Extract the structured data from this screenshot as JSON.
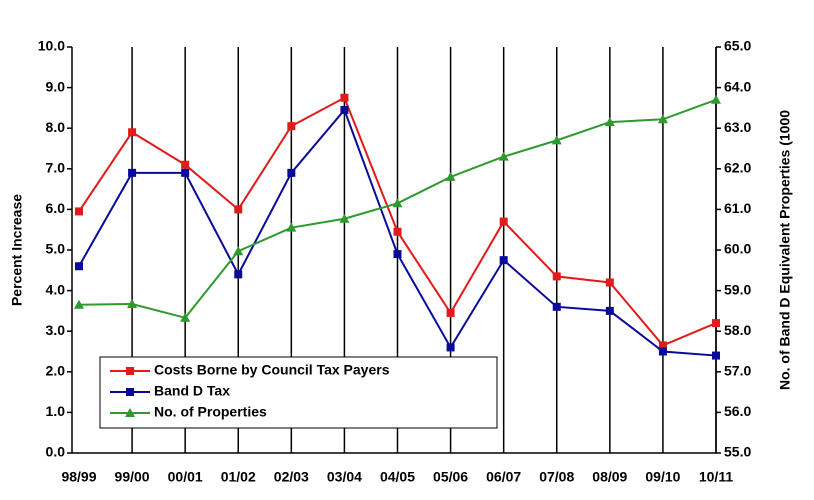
{
  "chart_data": {
    "type": "line",
    "y_label": "Percent Increase",
    "y2_label": "No. of Band D Equivalent Properties (1000",
    "categories": [
      "98/99",
      "99/00",
      "00/01",
      "01/02",
      "02/03",
      "03/04",
      "04/05",
      "05/06",
      "06/07",
      "07/08",
      "08/09",
      "09/10",
      "10/11"
    ],
    "series": [
      {
        "name": "Costs Borne by Council Tax Payers",
        "color": "#e31a1a",
        "marker": "square",
        "values": [
          5.95,
          7.9,
          7.1,
          6.0,
          8.05,
          8.75,
          5.45,
          3.45,
          5.7,
          4.35,
          4.2,
          2.65,
          3.2
        ]
      },
      {
        "name": "Band D Tax",
        "color": "#0a0a9a",
        "marker": "square",
        "values": [
          4.6,
          6.9,
          6.9,
          4.4,
          6.9,
          8.45,
          4.9,
          2.6,
          4.75,
          3.6,
          3.5,
          2.5,
          2.4
        ]
      },
      {
        "name": "No. of Properties",
        "color": "#2e9a2e",
        "marker": "triangle",
        "axis": "y2",
        "values": [
          58.65,
          58.67,
          58.33,
          59.97,
          60.55,
          60.77,
          61.15,
          61.8,
          62.3,
          62.7,
          63.15,
          63.22,
          63.7
        ]
      }
    ],
    "ylim": [
      0,
      10
    ],
    "yticks": [
      {
        "value": 0,
        "label": "0.0"
      },
      {
        "value": 1,
        "label": "1.0"
      },
      {
        "value": 2,
        "label": "2.0"
      },
      {
        "value": 3,
        "label": "3.0"
      },
      {
        "value": 4,
        "label": "4.0"
      },
      {
        "value": 5,
        "label": "5.0"
      },
      {
        "value": 6,
        "label": "6.0"
      },
      {
        "value": 7,
        "label": "7.0"
      },
      {
        "value": 8,
        "label": "8.0"
      },
      {
        "value": 9,
        "label": "9.0"
      },
      {
        "value": 10,
        "label": "10.0"
      }
    ],
    "y2lim": [
      55,
      65
    ],
    "y2ticks": [
      {
        "value": 55,
        "label": "55.0"
      },
      {
        "value": 56,
        "label": "56.0"
      },
      {
        "value": 57,
        "label": "57.0"
      },
      {
        "value": 58,
        "label": "58.0"
      },
      {
        "value": 59,
        "label": "59.0"
      },
      {
        "value": 60,
        "label": "60.0"
      },
      {
        "value": 61,
        "label": "61.0"
      },
      {
        "value": 62,
        "label": "62.0"
      },
      {
        "value": 63,
        "label": "63.0"
      },
      {
        "value": 64,
        "label": "64.0"
      },
      {
        "value": 65,
        "label": "65.0"
      }
    ],
    "xgrid": true
  }
}
